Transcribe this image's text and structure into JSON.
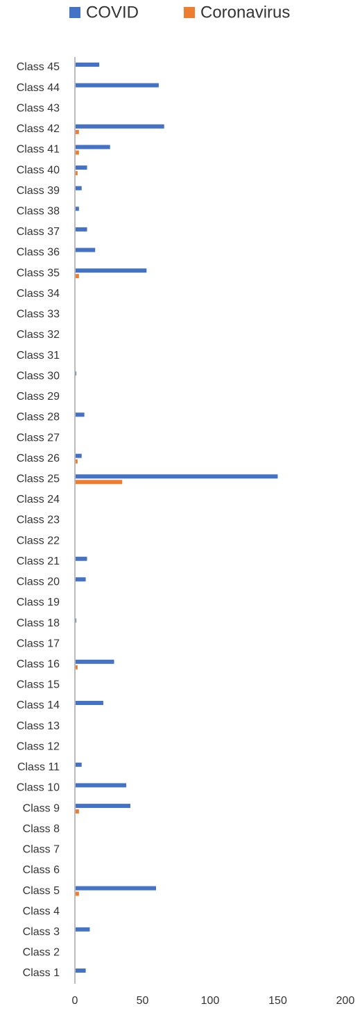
{
  "chart_data": {
    "type": "bar",
    "orientation": "horizontal",
    "categories": [
      "Class 1",
      "Class 2",
      "Class 3",
      "Class 4",
      "Class 5",
      "Class 6",
      "Class 7",
      "Class 8",
      "Class 9",
      "Class 10",
      "Class 11",
      "Class 12",
      "Class 13",
      "Class 14",
      "Class 15",
      "Class 16",
      "Class 17",
      "Class 18",
      "Class 19",
      "Class 20",
      "Class 21",
      "Class 22",
      "Class 23",
      "Class 24",
      "Class 25",
      "Class 26",
      "Class 27",
      "Class 28",
      "Class 29",
      "Class 30",
      "Class 31",
      "Class 32",
      "Class 33",
      "Class 34",
      "Class 35",
      "Class 36",
      "Class 37",
      "Class 38",
      "Class 39",
      "Class 40",
      "Class 41",
      "Class 42",
      "Class 43",
      "Class 44",
      "Class 45"
    ],
    "series": [
      {
        "name": "COVID",
        "color": "#4472c4",
        "values": [
          8,
          0,
          11,
          0,
          60,
          0,
          0,
          0,
          41,
          38,
          5,
          0,
          0,
          21,
          0,
          29,
          0,
          1,
          0,
          8,
          9,
          0,
          0,
          0,
          150,
          5,
          0,
          7,
          0,
          1,
          0,
          0,
          0,
          0,
          53,
          15,
          9,
          3,
          5,
          9,
          26,
          66,
          0,
          62,
          18
        ]
      },
      {
        "name": "Coronavirus",
        "color": "#ed7d31",
        "values": [
          0,
          0,
          0,
          0,
          3,
          0,
          0,
          0,
          3,
          0,
          0,
          0,
          0,
          0,
          0,
          2,
          0,
          0,
          0,
          0,
          0,
          0,
          0,
          0,
          35,
          2,
          0,
          0,
          0,
          0,
          0,
          0,
          0,
          0,
          3,
          0,
          0,
          0,
          0,
          2,
          3,
          3,
          0,
          0,
          0
        ]
      }
    ],
    "xlim": [
      0,
      200
    ],
    "xticks": [
      0,
      50,
      100,
      150,
      200
    ]
  }
}
